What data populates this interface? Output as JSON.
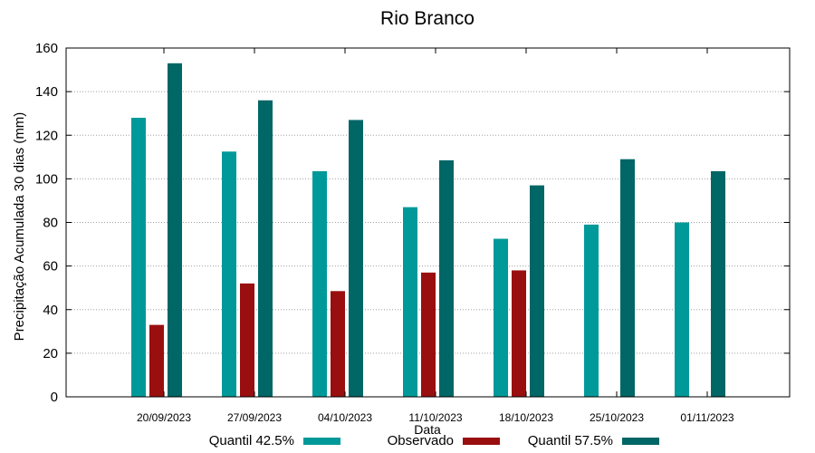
{
  "chart_data": {
    "type": "bar",
    "title": "Rio Branco",
    "xlabel": "Data",
    "ylabel": "Precipitação Acumulada 30 dias (mm)",
    "ylim": [
      0,
      160
    ],
    "yticks": [
      0,
      20,
      40,
      60,
      80,
      100,
      120,
      140,
      160
    ],
    "grid": true,
    "legend_position": "bottom",
    "categories": [
      "20/09/2023",
      "27/09/2023",
      "04/10/2023",
      "11/10/2023",
      "18/10/2023",
      "25/10/2023",
      "01/11/2023"
    ],
    "series": [
      {
        "name": "Quantil 42.5%",
        "color": "#009999",
        "values": [
          128,
          112.5,
          103.5,
          87,
          72.5,
          79,
          80
        ]
      },
      {
        "name": "Observado",
        "color": "#990f0f",
        "values": [
          33,
          52,
          48.5,
          57,
          58,
          null,
          null
        ]
      },
      {
        "name": "Quantil 57.5%",
        "color": "#006666",
        "values": [
          153,
          136,
          127,
          108.5,
          97,
          109,
          103.5
        ]
      }
    ]
  }
}
